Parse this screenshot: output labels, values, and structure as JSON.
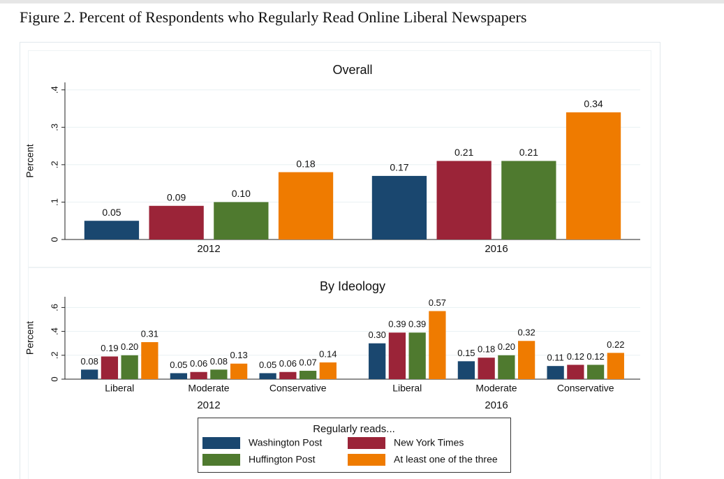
{
  "title": "Figure 2. Percent of Respondents who Regularly Read Online Liberal Newspapers",
  "legend_title": "Regularly reads...",
  "chart_data": [
    {
      "type": "bar",
      "title": "Overall",
      "y_label": "Percent",
      "categories": [
        "2012",
        "2016"
      ],
      "ylim": [
        0,
        0.42
      ],
      "yticks": [
        0,
        {
          "value": 0.1,
          "label": ".1"
        },
        {
          "value": 0.2,
          "label": ".2"
        },
        {
          "value": 0.3,
          "label": ".3"
        },
        {
          "value": 0.4,
          "label": ".4"
        }
      ],
      "grid": true,
      "series": [
        {
          "name": "Washington Post",
          "color": "#1a476f",
          "values": [
            0.05,
            0.17
          ],
          "value_labels": [
            "0.05",
            "0.17"
          ]
        },
        {
          "name": "New York Times",
          "color": "#9b2438",
          "values": [
            0.09,
            0.21
          ],
          "value_labels": [
            "0.09",
            "0.21"
          ]
        },
        {
          "name": "Huffington Post",
          "color": "#4f7a2f",
          "values": [
            0.1,
            0.21
          ],
          "value_labels": [
            "0.10",
            "0.21"
          ]
        },
        {
          "name": "At least one of the three",
          "color": "#ef7b00",
          "values": [
            0.18,
            0.34
          ],
          "value_labels": [
            "0.18",
            "0.34"
          ]
        }
      ]
    },
    {
      "type": "bar",
      "title": "By Ideology",
      "y_label": "Percent",
      "groups": [
        "2012",
        "2016"
      ],
      "categories": [
        "Liberal",
        "Moderate",
        "Conservative",
        "Liberal",
        "Moderate",
        "Conservative"
      ],
      "ylim": [
        0,
        0.69
      ],
      "yticks": [
        0,
        {
          "value": 0.2,
          "label": ".2"
        },
        {
          "value": 0.4,
          "label": ".4"
        },
        {
          "value": 0.6,
          "label": ".6"
        }
      ],
      "grid": true,
      "series": [
        {
          "name": "Washington Post",
          "color": "#1a476f",
          "values": [
            0.08,
            0.05,
            0.05,
            0.3,
            0.15,
            0.11
          ],
          "value_labels": [
            "0.08",
            "0.05",
            "0.05",
            "0.30",
            "0.15",
            "0.11"
          ]
        },
        {
          "name": "New York Times",
          "color": "#9b2438",
          "values": [
            0.19,
            0.06,
            0.06,
            0.39,
            0.18,
            0.12
          ],
          "value_labels": [
            "0.19",
            "0.06",
            "0.06",
            "0.39",
            "0.18",
            "0.12"
          ]
        },
        {
          "name": "Huffington Post",
          "color": "#4f7a2f",
          "values": [
            0.2,
            0.08,
            0.07,
            0.39,
            0.2,
            0.12
          ],
          "value_labels": [
            "0.20",
            "0.08",
            "0.07",
            "0.39",
            "0.20",
            "0.12"
          ]
        },
        {
          "name": "At least one of the three",
          "color": "#ef7b00",
          "values": [
            0.31,
            0.13,
            0.14,
            0.57,
            0.32,
            0.22
          ],
          "value_labels": [
            "0.31",
            "0.13",
            "0.14",
            "0.57",
            "0.32",
            "0.22"
          ]
        }
      ]
    }
  ]
}
